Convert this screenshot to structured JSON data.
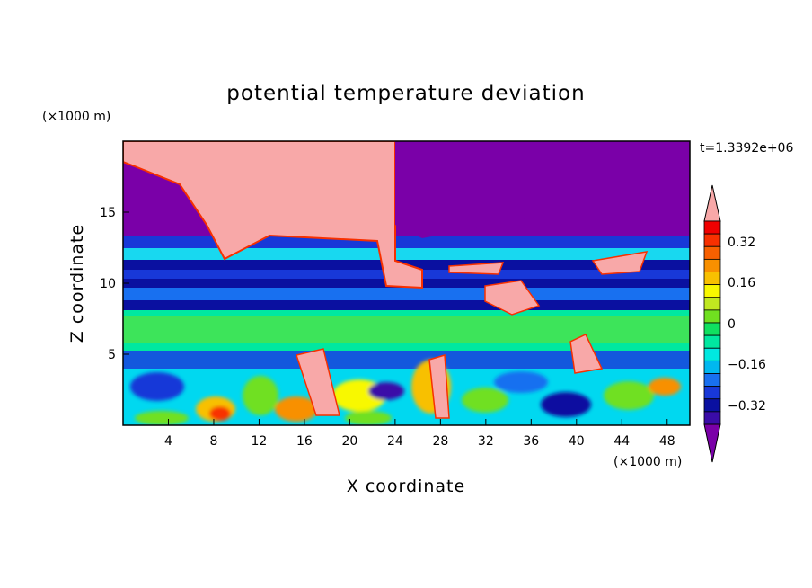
{
  "chart_data": {
    "type": "heatmap",
    "title": "potential temperature deviation",
    "xlabel": "X coordinate",
    "ylabel": "Z coordinate",
    "x_unit": "(×1000 m)",
    "y_unit": "(×1000 m)",
    "time_label": "t=1.3392e+06",
    "xlim": [
      0,
      50
    ],
    "ylim": [
      0,
      20
    ],
    "x_ticks": [
      "4",
      "8",
      "12",
      "16",
      "20",
      "24",
      "28",
      "32",
      "36",
      "40",
      "44",
      "48"
    ],
    "y_ticks": [
      "5",
      "10",
      "15"
    ],
    "colorbar": {
      "levels": [
        -0.4,
        -0.36,
        -0.32,
        -0.28,
        -0.24,
        -0.2,
        -0.16,
        -0.12,
        -0.08,
        -0.04,
        0,
        0.04,
        0.08,
        0.12,
        0.16,
        0.2,
        0.24,
        0.28,
        0.32,
        0.36,
        0.4
      ],
      "tick_labels": [
        "0.32",
        "0.16",
        "0",
        "−0.16",
        "−0.32"
      ],
      "colors": [
        "#7a00a8",
        "#3a0ca8",
        "#0a10a0",
        "#1838d8",
        "#1870f0",
        "#00b8f0",
        "#00e8e0",
        "#00e8a0",
        "#10e060",
        "#70e020",
        "#c0e820",
        "#f8f800",
        "#f8c000",
        "#f89000",
        "#f86000",
        "#f83000",
        "#f00000",
        "#f8a8a8"
      ]
    },
    "bands": [
      {
        "z_range": [
          13,
          20
        ],
        "description_value": -0.4
      },
      {
        "z_range": [
          8.2,
          13
        ],
        "description_value": -0.3
      },
      {
        "z_range": [
          5.2,
          8.2
        ],
        "description_value": 0.02
      },
      {
        "z_range": [
          0,
          5.2
        ],
        "description_value": -0.1
      }
    ]
  }
}
